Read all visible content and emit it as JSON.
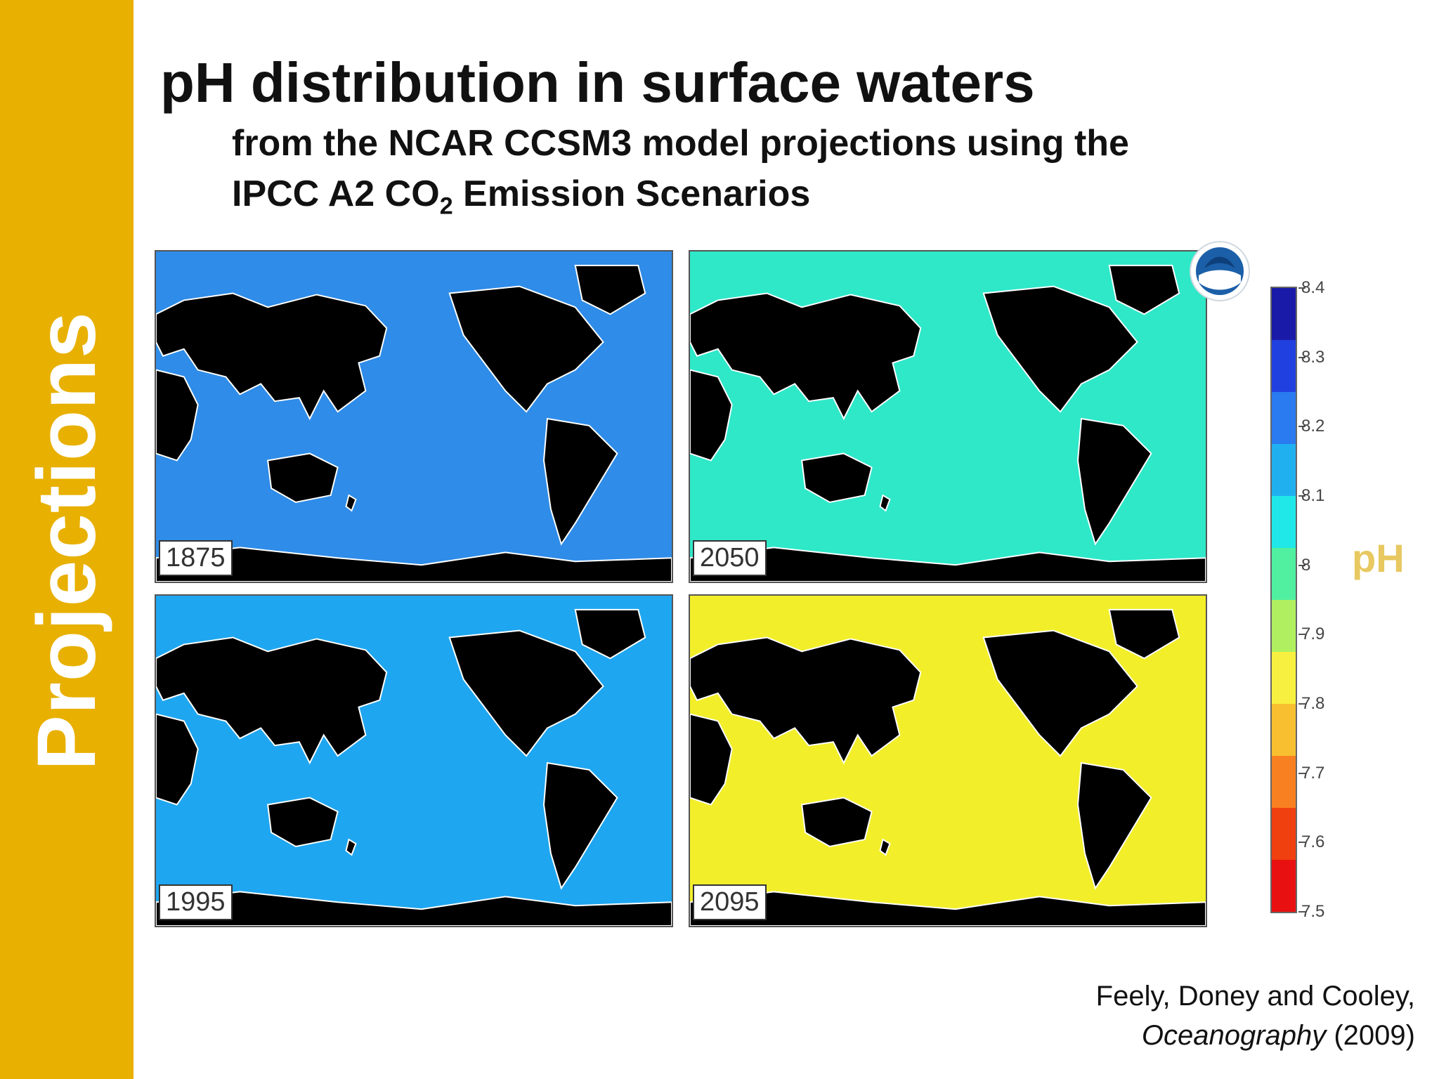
{
  "sidebar": {
    "label": "Projections",
    "color": "#E8B000"
  },
  "title": "pH distribution in surface waters",
  "subtitle": {
    "line1": "from the NCAR CCSM3 model projections using the",
    "line2_prefix": "IPCC A2 CO",
    "line2_sub": "2",
    "line2_suffix": " Emission Scenarios"
  },
  "maps": [
    {
      "year": "1875",
      "ocean_color": "#2F8CE8"
    },
    {
      "year": "2050",
      "ocean_color": "#2EE8C8"
    },
    {
      "year": "1995",
      "ocean_color": "#1FA6F0"
    },
    {
      "year": "2095",
      "ocean_color": "#F2EE2A"
    }
  ],
  "colorbar": {
    "title": "pH",
    "ticks": [
      "8.4",
      "8.3",
      "8.2",
      "8.1",
      "8",
      "7.9",
      "7.8",
      "7.7",
      "7.6",
      "7.5"
    ],
    "colors": [
      "#1A1AA8",
      "#2040E0",
      "#2A7AF0",
      "#20B0F0",
      "#20E8E8",
      "#50F0A0",
      "#B0F060",
      "#F8F040",
      "#F8C030",
      "#F88020",
      "#F04010",
      "#E81010"
    ]
  },
  "citation": {
    "authors": "Feely, Doney and Cooley,",
    "journal": "Oceanography",
    "year": " (2009)"
  }
}
